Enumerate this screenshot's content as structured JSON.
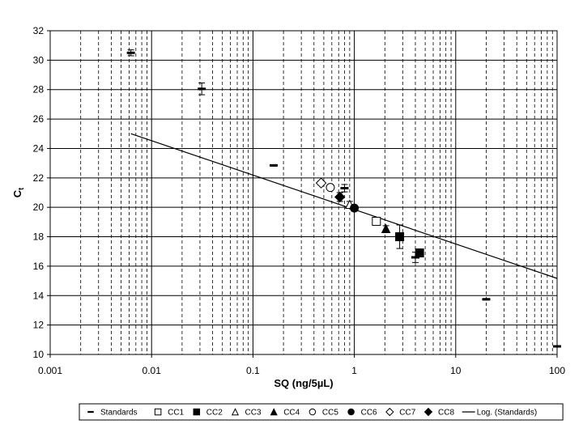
{
  "chart_data": {
    "type": "scatter",
    "title": "",
    "xlabel": "SQ (ng/5µL)",
    "ylabel_main": "C",
    "ylabel_sub": "t",
    "x_scale": "log",
    "xlim": [
      0.001,
      100
    ],
    "ylim": [
      10,
      32
    ],
    "x_ticks": [
      0.001,
      0.01,
      0.1,
      1,
      10,
      100
    ],
    "x_tick_labels": [
      "0.001",
      "0.01",
      "0.1",
      "1",
      "10",
      "100"
    ],
    "y_ticks": [
      10,
      12,
      14,
      16,
      18,
      20,
      22,
      24,
      26,
      28,
      30,
      32
    ],
    "y_tick_labels": [
      "10",
      "12",
      "14",
      "16",
      "18",
      "20",
      "22",
      "24",
      "26",
      "28",
      "30",
      "32"
    ],
    "grid": "major solid, minor dashed (x log minors)",
    "legend_position": "bottom",
    "series": [
      {
        "name": "Standards",
        "marker": "dash",
        "points": [
          {
            "x": 0.00625,
            "y": 30.5,
            "err": 0.2
          },
          {
            "x": 0.03125,
            "y": 28.05,
            "err": 0.4
          },
          {
            "x": 0.16,
            "y": 22.85,
            "err": 0.05
          },
          {
            "x": 0.8,
            "y": 21.3,
            "err": 0.25
          },
          {
            "x": 4.0,
            "y": 16.6,
            "err": 0.35
          },
          {
            "x": 20,
            "y": 13.75,
            "err": 0.05
          },
          {
            "x": 100,
            "y": 10.55,
            "err": 0.05
          }
        ]
      },
      {
        "name": "CC1",
        "marker": "square-open",
        "points": [
          {
            "x": 1.65,
            "y": 19.05,
            "err": 0.2
          }
        ]
      },
      {
        "name": "CC2",
        "marker": "square-filled",
        "points": [
          {
            "x": 2.8,
            "y": 18.0,
            "err": 0.8
          },
          {
            "x": 4.4,
            "y": 16.9,
            "err": 0.25
          }
        ]
      },
      {
        "name": "CC3",
        "marker": "triangle-open",
        "points": [
          {
            "x": 0.9,
            "y": 20.2,
            "err": 0.2
          }
        ]
      },
      {
        "name": "CC4",
        "marker": "triangle-filled",
        "points": [
          {
            "x": 2.05,
            "y": 18.55,
            "err": 0.2
          }
        ]
      },
      {
        "name": "CC5",
        "marker": "circle-open",
        "points": [
          {
            "x": 0.58,
            "y": 21.35,
            "err": 0.15
          }
        ]
      },
      {
        "name": "CC6",
        "marker": "circle-filled",
        "points": [
          {
            "x": 1.0,
            "y": 19.95,
            "err": 0.2
          }
        ]
      },
      {
        "name": "CC7",
        "marker": "diamond-open",
        "points": [
          {
            "x": 0.47,
            "y": 21.65,
            "err": 0.15
          }
        ]
      },
      {
        "name": "CC8",
        "marker": "diamond-filled",
        "points": [
          {
            "x": 0.72,
            "y": 20.7,
            "err": 0.3
          }
        ]
      }
    ],
    "trendline": {
      "name": "Log. (Standards)",
      "x_range": [
        0.00625,
        100
      ],
      "intercept": 19.85,
      "slope_per_decade": -2.34
    }
  }
}
